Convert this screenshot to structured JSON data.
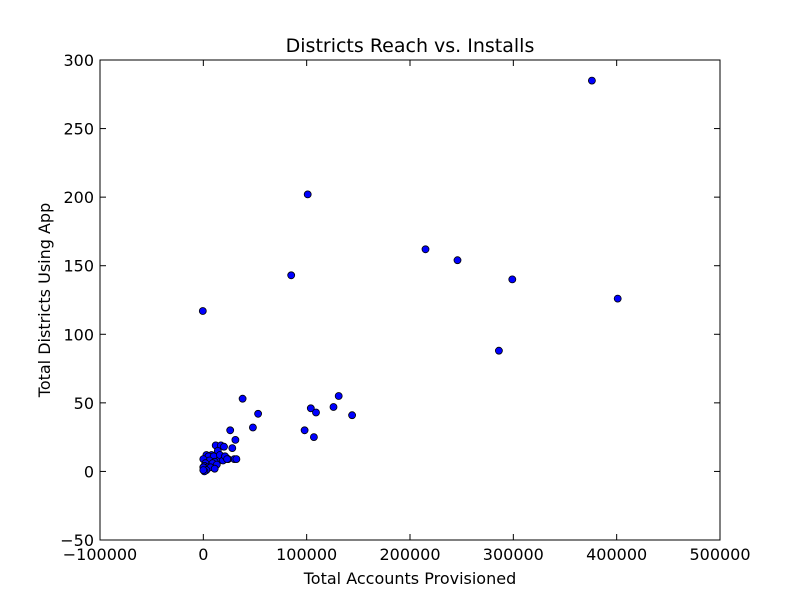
{
  "chart_data": {
    "type": "scatter",
    "title": "Districts Reach vs. Installs",
    "xlabel": "Total Accounts Provisioned",
    "ylabel": "Total Districts Using App",
    "xlim": [
      -100000,
      500000
    ],
    "ylim": [
      -50,
      300
    ],
    "xticks": [
      -100000,
      0,
      100000,
      200000,
      300000,
      400000,
      500000
    ],
    "xtick_labels": [
      "−100000",
      "0",
      "100000",
      "200000",
      "300000",
      "400000",
      "500000"
    ],
    "yticks": [
      -50,
      0,
      50,
      100,
      150,
      200,
      250,
      300
    ],
    "ytick_labels": [
      "−50",
      "0",
      "50",
      "100",
      "150",
      "200",
      "250",
      "300"
    ],
    "grid": false,
    "marker_color": "#0000ff",
    "marker_edge": "#000000",
    "points": [
      [
        376000,
        285
      ],
      [
        101000,
        202
      ],
      [
        215000,
        162
      ],
      [
        246000,
        154
      ],
      [
        85000,
        143
      ],
      [
        299000,
        140
      ],
      [
        401000,
        126
      ],
      [
        -500,
        117
      ],
      [
        286000,
        88
      ],
      [
        131000,
        55
      ],
      [
        38000,
        53
      ],
      [
        104000,
        46
      ],
      [
        126000,
        47
      ],
      [
        109000,
        43
      ],
      [
        144000,
        41
      ],
      [
        53000,
        42
      ],
      [
        48000,
        32
      ],
      [
        26000,
        30
      ],
      [
        98000,
        30
      ],
      [
        107000,
        25
      ],
      [
        31000,
        23
      ],
      [
        12000,
        19
      ],
      [
        17000,
        19
      ],
      [
        28000,
        17
      ],
      [
        20000,
        18
      ],
      [
        14000,
        15
      ],
      [
        8000,
        12
      ],
      [
        3000,
        12
      ],
      [
        5000,
        11
      ],
      [
        10000,
        11
      ],
      [
        22000,
        10
      ],
      [
        30000,
        9
      ],
      [
        32000,
        9
      ],
      [
        18000,
        9
      ],
      [
        24000,
        9
      ],
      [
        15000,
        8
      ],
      [
        6000,
        8
      ],
      [
        11000,
        7
      ],
      [
        0,
        9
      ],
      [
        2000,
        6
      ],
      [
        9000,
        6
      ],
      [
        13000,
        5
      ],
      [
        1000,
        4
      ],
      [
        4000,
        3
      ],
      [
        7000,
        3
      ],
      [
        0,
        3
      ],
      [
        11000,
        2
      ],
      [
        3000,
        1
      ],
      [
        1000,
        0
      ],
      [
        0,
        1
      ],
      [
        16000,
        12
      ],
      [
        19000,
        8
      ],
      [
        21000,
        11
      ],
      [
        23000,
        9
      ]
    ]
  }
}
